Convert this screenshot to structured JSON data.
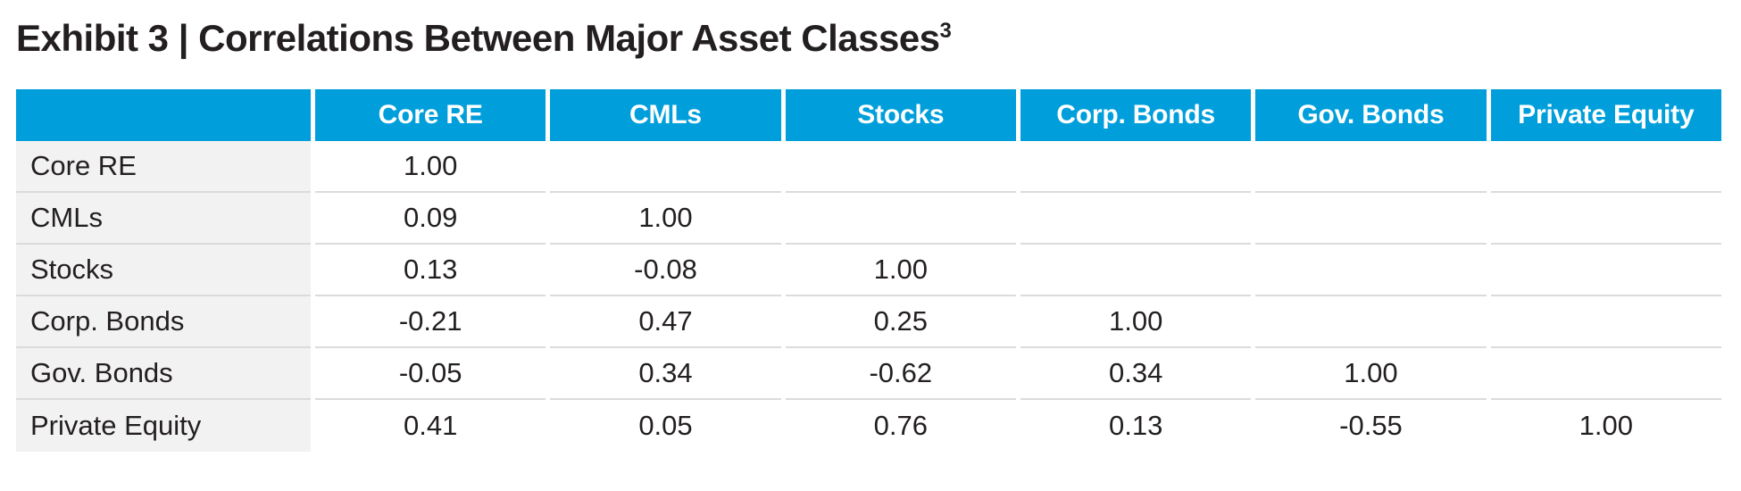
{
  "title": {
    "text": "Exhibit 3 | Correlations Between Major Asset Classes",
    "superscript": "3"
  },
  "colors": {
    "header_bg": "#009fdb",
    "header_text": "#ffffff",
    "label_bg": "#f2f2f2",
    "row_line": "#dbdbdb",
    "text": "#231f20",
    "page_bg": "#ffffff"
  },
  "chart_data": {
    "type": "table",
    "title": "Exhibit 3 | Correlations Between Major Asset Classes³",
    "description": "Lower-triangular correlation matrix between major asset classes",
    "columns": [
      "",
      "Core RE",
      "CMLs",
      "Stocks",
      "Corp. Bonds",
      "Gov. Bonds",
      "Private Equity"
    ],
    "rows": [
      {
        "label": "Core RE",
        "values": [
          "1.00",
          "",
          "",
          "",
          "",
          ""
        ]
      },
      {
        "label": "CMLs",
        "values": [
          "0.09",
          "1.00",
          "",
          "",
          "",
          ""
        ]
      },
      {
        "label": "Stocks",
        "values": [
          "0.13",
          "-0.08",
          "1.00",
          "",
          "",
          ""
        ]
      },
      {
        "label": "Corp. Bonds",
        "values": [
          "-0.21",
          "0.47",
          "0.25",
          "1.00",
          "",
          ""
        ]
      },
      {
        "label": "Gov. Bonds",
        "values": [
          "-0.05",
          "0.34",
          "-0.62",
          "0.34",
          "1.00",
          ""
        ]
      },
      {
        "label": "Private Equity",
        "values": [
          "0.41",
          "0.05",
          "0.76",
          "0.13",
          "-0.55",
          "1.00"
        ]
      }
    ]
  }
}
